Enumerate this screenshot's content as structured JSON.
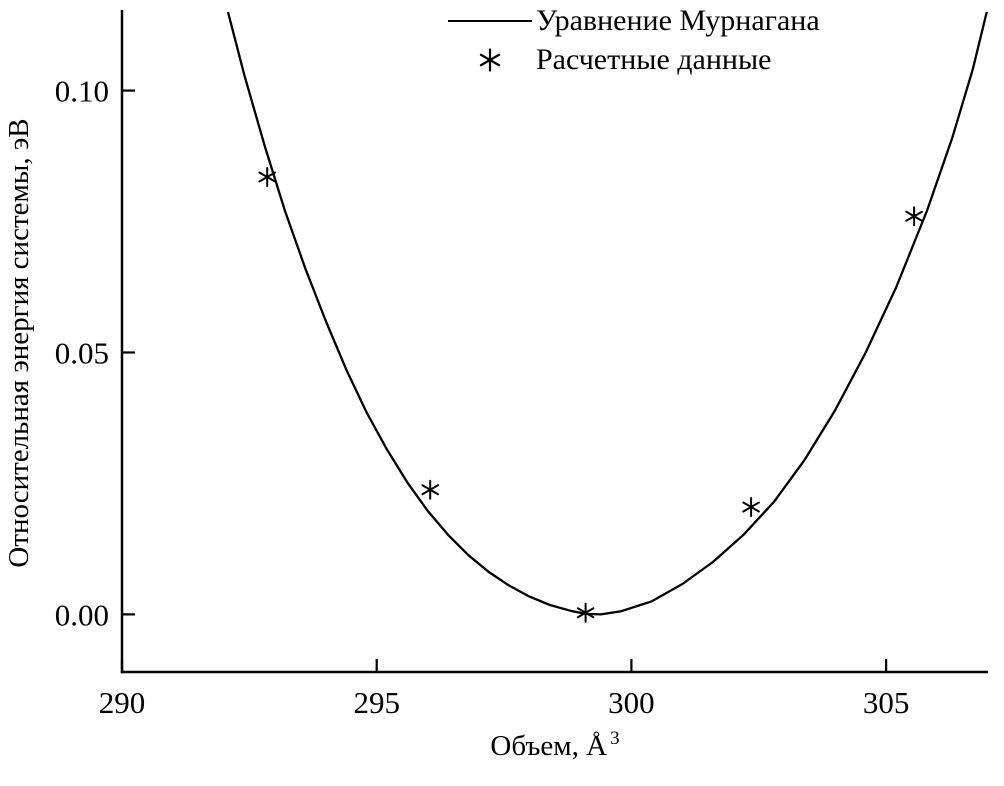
{
  "figure": {
    "background_color": "#ffffff",
    "foreground_color": "#000000"
  },
  "chart_data": {
    "type": "line+scatter",
    "title": "",
    "xlabel": "Объем, Å³",
    "xlabel_base": "Объем, Å",
    "xlabel_sup": "3",
    "ylabel": "Относительная энергия системы, эВ",
    "xlim": [
      290,
      307
    ],
    "ylim": [
      -0.011,
      0.115
    ],
    "xticks": [
      {
        "value": 290,
        "label": "290"
      },
      {
        "value": 295,
        "label": "295"
      },
      {
        "value": 300,
        "label": "300"
      },
      {
        "value": 305,
        "label": "305"
      }
    ],
    "yticks": [
      {
        "value": 0.0,
        "label": "0.00"
      },
      {
        "value": 0.05,
        "label": "0.05"
      },
      {
        "value": 0.1,
        "label": "0.10"
      }
    ],
    "grid": false,
    "legend_position": "top-center",
    "series": [
      {
        "name": "Уравнение Мурнагана",
        "type": "line",
        "marker": "none",
        "color": "#000000",
        "points": [
          [
            292.0,
            0.118
          ],
          [
            292.4,
            0.103
          ],
          [
            292.8,
            0.0895
          ],
          [
            293.2,
            0.077
          ],
          [
            293.6,
            0.066
          ],
          [
            294.0,
            0.056
          ],
          [
            294.4,
            0.0468
          ],
          [
            294.8,
            0.0386
          ],
          [
            295.2,
            0.0315
          ],
          [
            295.6,
            0.0252
          ],
          [
            296.0,
            0.0198
          ],
          [
            296.4,
            0.0152
          ],
          [
            296.8,
            0.0113
          ],
          [
            297.2,
            0.0081
          ],
          [
            297.6,
            0.0055
          ],
          [
            298.0,
            0.0034
          ],
          [
            298.4,
            0.0018
          ],
          [
            298.8,
            0.0007
          ],
          [
            299.1,
            0.0001
          ],
          [
            299.4,
            0.0
          ],
          [
            299.8,
            0.0006
          ],
          [
            300.4,
            0.0025
          ],
          [
            301.0,
            0.0058
          ],
          [
            301.6,
            0.01
          ],
          [
            302.2,
            0.0152
          ],
          [
            302.8,
            0.0215
          ],
          [
            303.4,
            0.0295
          ],
          [
            304.0,
            0.039
          ],
          [
            304.6,
            0.05
          ],
          [
            305.2,
            0.0625
          ],
          [
            305.8,
            0.077
          ],
          [
            306.3,
            0.091
          ],
          [
            306.7,
            0.104
          ],
          [
            307.0,
            0.116
          ]
        ]
      },
      {
        "name": "Расчетные данные",
        "type": "scatter",
        "marker": "asterisk",
        "color": "#000000",
        "points": [
          [
            292.85,
            0.0835
          ],
          [
            296.05,
            0.0238
          ],
          [
            299.1,
            0.0003
          ],
          [
            302.35,
            0.0205
          ],
          [
            305.55,
            0.076
          ]
        ]
      }
    ]
  }
}
